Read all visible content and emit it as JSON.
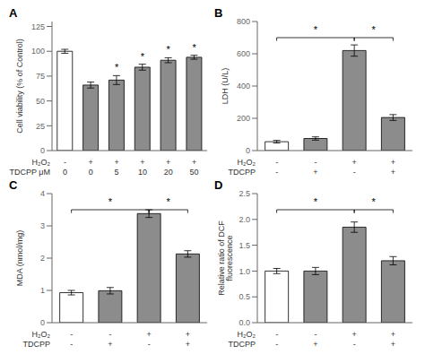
{
  "chart_data": [
    {
      "type": "bar",
      "title": "A",
      "ylabel": "Cell viability (% of Control)",
      "values": [
        100,
        66,
        71,
        84,
        91,
        94
      ],
      "errors": [
        2.0,
        3.0,
        4.5,
        3.0,
        2.5,
        2.0
      ],
      "colors": [
        "#ffffff",
        "#8c8c8c",
        "#8c8c8c",
        "#8c8c8c",
        "#8c8c8c",
        "#8c8c8c"
      ],
      "ylim": [
        0,
        130
      ],
      "yticks": [
        0,
        25,
        50,
        75,
        100,
        125
      ],
      "category_rows": [
        {
          "name": "H₂O₂",
          "labels": [
            "-",
            "+",
            "+",
            "+",
            "+",
            "+"
          ]
        },
        {
          "name": "TDCPP μM",
          "labels": [
            "0",
            "0",
            "5",
            "10",
            "20",
            "50"
          ]
        }
      ],
      "annotations": [
        {
          "text": "*",
          "bar": 2
        },
        {
          "text": "*",
          "bar": 3
        },
        {
          "text": "*",
          "bar": 4
        },
        {
          "text": "*",
          "bar": 5
        }
      ]
    },
    {
      "type": "bar",
      "title": "B",
      "ylabel": "LDH (U/L)",
      "values": [
        55,
        75,
        620,
        205
      ],
      "errors": [
        8,
        10,
        35,
        18
      ],
      "colors": [
        "#ffffff",
        "#8c8c8c",
        "#8c8c8c",
        "#8c8c8c"
      ],
      "ylim": [
        0,
        800
      ],
      "yticks": [
        0,
        200,
        400,
        600,
        800
      ],
      "category_rows": [
        {
          "name": "H₂O₂",
          "labels": [
            "-",
            "-",
            "+",
            "+"
          ]
        },
        {
          "name": "TDCPP",
          "labels": [
            "-",
            "+",
            "-",
            "+"
          ]
        }
      ],
      "annotations": [
        {
          "text": "*",
          "from": 0,
          "to": 2
        },
        {
          "text": "*",
          "from": 2,
          "to": 3
        }
      ]
    },
    {
      "type": "bar",
      "title": "C",
      "ylabel": "MDA (nmol/mg)",
      "values": [
        0.93,
        0.99,
        3.38,
        2.13
      ],
      "errors": [
        0.07,
        0.1,
        0.12,
        0.1
      ],
      "colors": [
        "#ffffff",
        "#8c8c8c",
        "#8c8c8c",
        "#8c8c8c"
      ],
      "ylim": [
        0,
        4
      ],
      "yticks": [
        0,
        1,
        2,
        3,
        4
      ],
      "category_rows": [
        {
          "name": "H₂O₂",
          "labels": [
            "-",
            "-",
            "+",
            "+"
          ]
        },
        {
          "name": "TDCPP",
          "labels": [
            "-",
            "+",
            "-",
            "+"
          ]
        }
      ],
      "annotations": [
        {
          "text": "*",
          "from": 0,
          "to": 2
        },
        {
          "text": "*",
          "from": 2,
          "to": 3
        }
      ]
    },
    {
      "type": "bar",
      "title": "D",
      "ylabel": "Relative ratio of DCF\nfluorescence",
      "values": [
        1.0,
        1.0,
        1.85,
        1.2
      ],
      "errors": [
        0.05,
        0.07,
        0.1,
        0.08
      ],
      "colors": [
        "#ffffff",
        "#8c8c8c",
        "#8c8c8c",
        "#8c8c8c"
      ],
      "ylim": [
        0.0,
        2.5
      ],
      "yticks": [
        {
          "value": 0,
          "label": "0.0"
        },
        0.5,
        {
          "value": 1,
          "label": "1.0"
        },
        1.5,
        {
          "value": 2,
          "label": "2.0"
        },
        2.5
      ],
      "category_rows": [
        {
          "name": "H₂O₂",
          "labels": [
            "-",
            "-",
            "+",
            "+"
          ]
        },
        {
          "name": "TDCPP",
          "labels": [
            "-",
            "+",
            "-",
            "+"
          ]
        }
      ],
      "annotations": [
        {
          "text": "*",
          "from": 0,
          "to": 2
        },
        {
          "text": "*",
          "from": 2,
          "to": 3
        }
      ]
    }
  ]
}
